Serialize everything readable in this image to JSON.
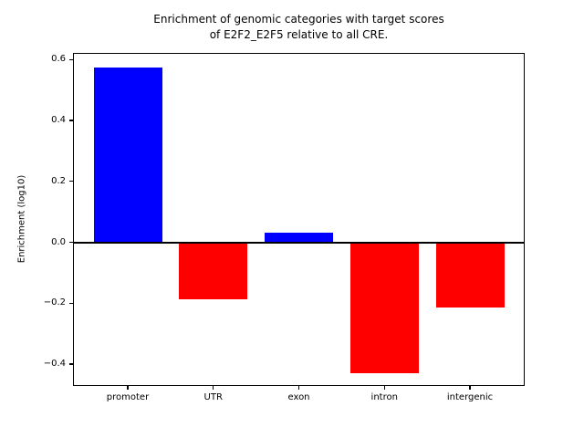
{
  "title": {
    "text": "Enrichment of genomic categories with target scores\nof E2F2_E2F5 relative to all CRE."
  },
  "chart_data": {
    "type": "bar",
    "title": "Enrichment of genomic categories with target scores\nof E2F2_E2F5 relative to all CRE.",
    "xlabel": "",
    "ylabel": "Enrichment (log10)",
    "categories": [
      "promoter",
      "UTR",
      "exon",
      "intron",
      "intergenic"
    ],
    "values": [
      0.573,
      -0.188,
      0.031,
      -0.43,
      -0.215
    ],
    "bar_colors": [
      "#0000ff",
      "#ff0000",
      "#0000ff",
      "#ff0000",
      "#ff0000"
    ],
    "positive_color": "#0000ff",
    "negative_color": "#ff0000",
    "bar_width": 0.8,
    "ylim": [
      -0.472,
      0.622
    ],
    "xlim": [
      -0.64,
      4.64
    ],
    "yticks": [
      0.6,
      0.4,
      0.2,
      0.0,
      -0.2,
      -0.4
    ],
    "ytick_labels": [
      "0.6",
      "0.4",
      "0.2",
      "0.0",
      "−0.2",
      "−0.4"
    ],
    "zero_line": true,
    "zero_line_color": "#000000",
    "grid": false,
    "legend": "none"
  }
}
